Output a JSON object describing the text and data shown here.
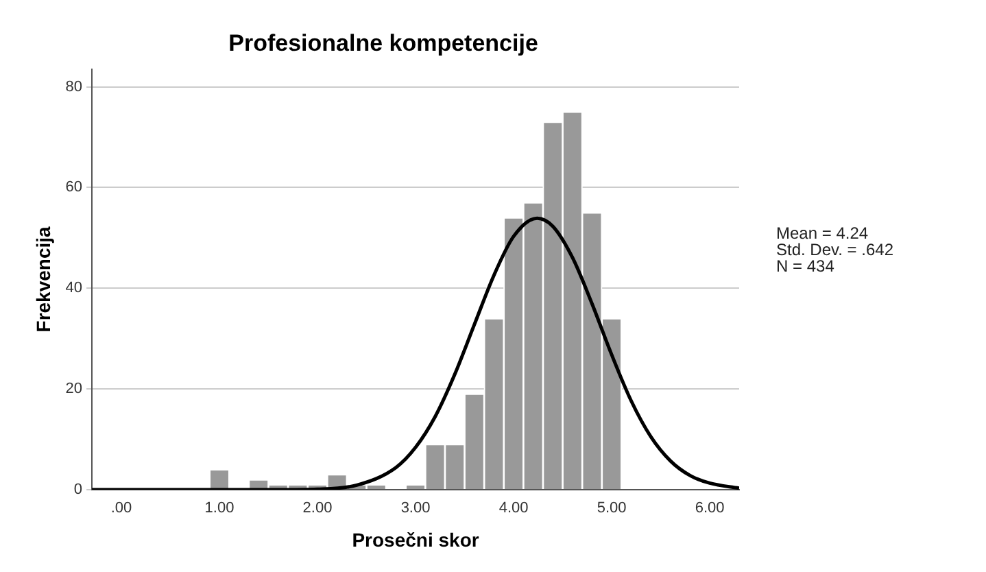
{
  "chart_data": {
    "type": "histogram",
    "title": "Profesionalne kompetencije",
    "xlabel": "Prosečni skor",
    "ylabel": "Frekvencija",
    "bins": [
      0.9,
      1.1,
      1.3,
      1.5,
      1.7,
      1.9,
      2.1,
      2.3,
      2.5,
      2.7,
      2.9,
      3.1,
      3.3,
      3.5,
      3.7,
      3.9,
      4.1,
      4.3,
      4.5,
      4.7,
      4.9,
      5.1
    ],
    "values": [
      4,
      0,
      2,
      1,
      1,
      1,
      3,
      1,
      1,
      0,
      1,
      9,
      9,
      19,
      34,
      54,
      57,
      73,
      75,
      55,
      34
    ],
    "color": "#999999",
    "series": [
      {
        "type": "line",
        "color": "#000000",
        "x": [
          -0.3,
          1.0,
          1.6,
          2.0,
          2.4,
          2.8,
          3.0,
          3.2,
          3.4,
          3.6,
          3.8,
          4.0,
          4.24,
          4.4,
          4.6,
          4.8,
          5.0,
          5.2,
          5.4,
          5.6,
          5.8,
          6.0,
          6.3
        ],
        "values": [
          0,
          0,
          0,
          0.1,
          0.9,
          4.4,
          8.4,
          14.5,
          22.9,
          32.8,
          42.6,
          50.3,
          53.9,
          52.3,
          46.1,
          36.9,
          26.8,
          17.6,
          10.5,
          5.7,
          2.8,
          1.3,
          0.3
        ]
      }
    ],
    "xlim": [
      -0.3,
      6.3
    ],
    "xticks": [
      {
        "value": 0,
        "label": ".00"
      },
      {
        "value": 1,
        "label": "1.00"
      },
      {
        "value": 2,
        "label": "2.00"
      },
      {
        "value": 3,
        "label": "3.00"
      },
      {
        "value": 4,
        "label": "4.00"
      },
      {
        "value": 5,
        "label": "5.00"
      },
      {
        "value": 6,
        "label": "6.00"
      }
    ],
    "ylim": [
      0,
      83.5
    ],
    "yticks": [
      0,
      20,
      40,
      60,
      80
    ],
    "grid": "y",
    "legend": false,
    "marker": "none",
    "line_style": "solid",
    "annotations": [
      "Mean = 4.24",
      "Std. Dev. = .642",
      "N = 434"
    ]
  }
}
